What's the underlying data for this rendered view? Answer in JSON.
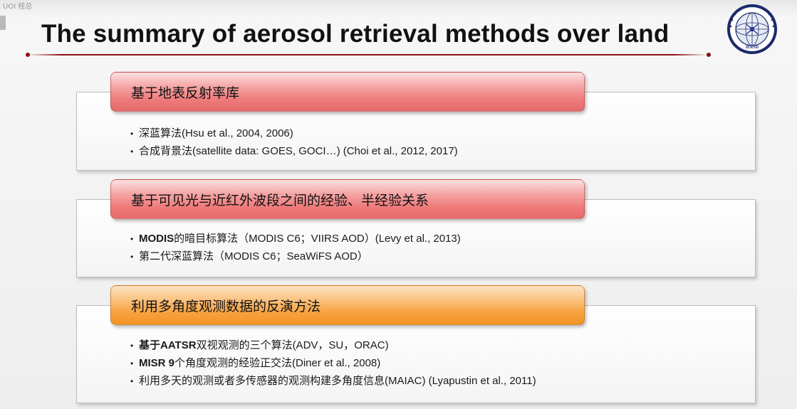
{
  "slide": {
    "overlay_text": "UOI 桂总",
    "title": "The summary of aerosol retrieval methods over land",
    "logo_text": "IERSD"
  },
  "sections": [
    {
      "header": "基于地表反射率库",
      "bullets": [
        {
          "marker": "•",
          "bold": "",
          "text": "深蓝算法(Hsu et al., 2004, 2006)"
        },
        {
          "marker": "•",
          "bold": "",
          "text": "合成背景法(satellite data: GOES, GOCI…) (Choi et al., 2012, 2017)"
        }
      ]
    },
    {
      "header": "基于可见光与近红外波段之间的经验、半经验关系",
      "bullets": [
        {
          "marker": "•",
          "bold": "MODIS",
          "text": "的暗目标算法（MODIS C6；VIIRS AOD）(Levy et al., 2013)"
        },
        {
          "marker": "•",
          "bold": "",
          "text": "第二代深蓝算法（MODIS C6；SeaWiFS AOD）"
        }
      ]
    },
    {
      "header": "利用多角度观测数据的反演方法",
      "bullets": [
        {
          "marker": "•",
          "bold": "基于AATSR",
          "text": "双视观测的三个算法(ADV，SU，ORAC)"
        },
        {
          "marker": "•",
          "bold": "MISR 9",
          "text": "个角度观测的经验正交法(Diner et al., 2008)"
        },
        {
          "marker": "•",
          "bold": "",
          "text": "利用多天的观测或者多传感器的观测构建多角度信息(MAIAC) (Lyapustin et al., 2011)"
        }
      ]
    }
  ]
}
